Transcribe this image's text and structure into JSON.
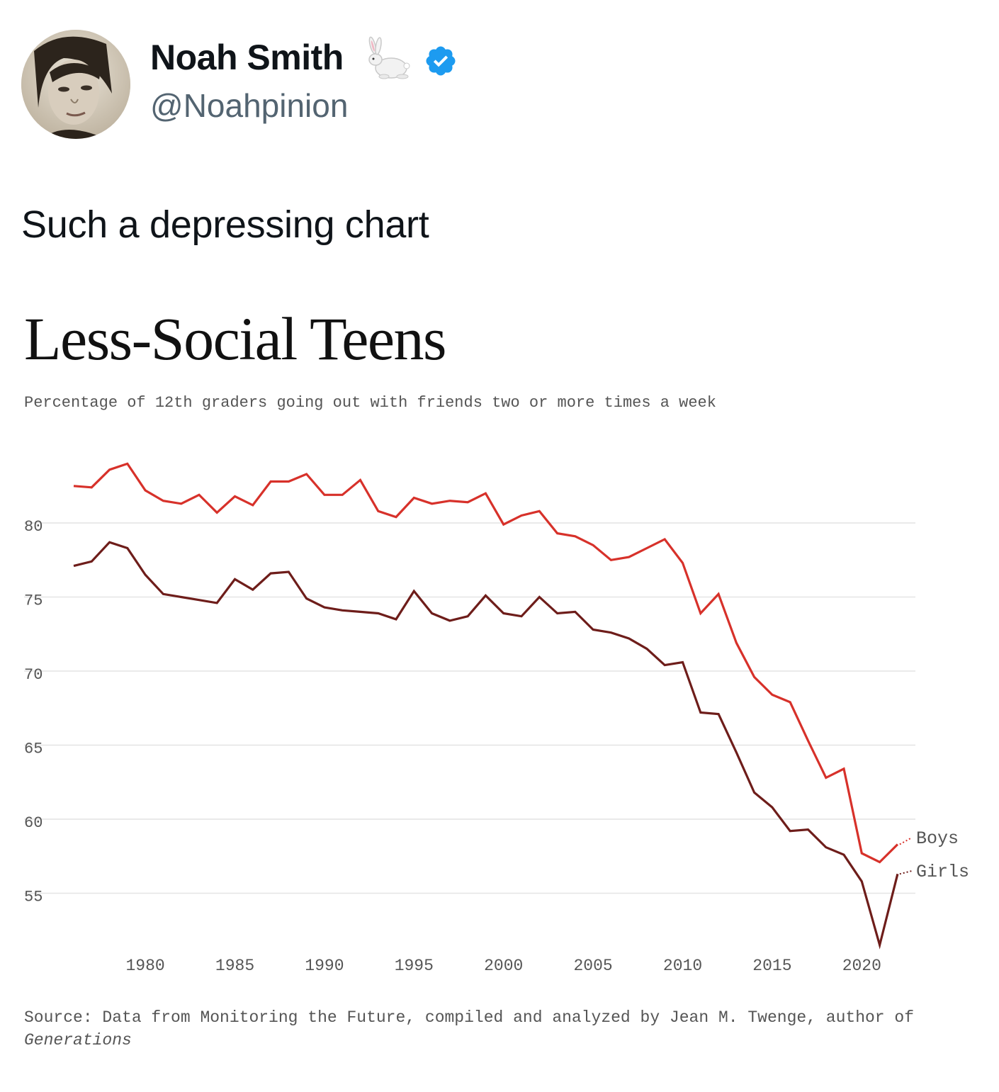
{
  "tweet": {
    "author_name": "Noah Smith",
    "name_emoji": "rabbit",
    "handle": "@Noahpinion",
    "verified_badge": "verified-badge",
    "text": "Such a depressing chart"
  },
  "colors": {
    "boys_line": "#d7312a",
    "girls_line": "#6e1d1a",
    "verified_blue": "#1d9bf0"
  },
  "chart_data": {
    "type": "line",
    "title": "Less-Social Teens",
    "subtitle": "Percentage of 12th graders going out with friends two or more times a week",
    "xlabel": "",
    "ylabel": "",
    "xlim": [
      1976,
      2022
    ],
    "ylim": [
      51,
      85
    ],
    "x_ticks": [
      1980,
      1985,
      1990,
      1995,
      2000,
      2005,
      2010,
      2015,
      2020
    ],
    "y_ticks": [
      80,
      75,
      70,
      65,
      60,
      55
    ],
    "grid": true,
    "x": [
      1976,
      1977,
      1978,
      1979,
      1980,
      1981,
      1982,
      1983,
      1984,
      1985,
      1986,
      1987,
      1988,
      1989,
      1990,
      1991,
      1992,
      1993,
      1994,
      1995,
      1996,
      1997,
      1998,
      1999,
      2000,
      2001,
      2002,
      2003,
      2004,
      2005,
      2006,
      2007,
      2008,
      2009,
      2010,
      2011,
      2012,
      2013,
      2014,
      2015,
      2016,
      2017,
      2018,
      2019,
      2020,
      2021,
      2022
    ],
    "series": [
      {
        "name": "Boys",
        "label": "Boys",
        "values": [
          82.5,
          82.4,
          83.6,
          84.0,
          82.2,
          81.5,
          81.3,
          81.9,
          80.7,
          81.8,
          81.2,
          82.8,
          82.8,
          83.3,
          81.9,
          81.9,
          82.9,
          80.8,
          80.4,
          81.7,
          81.3,
          81.5,
          81.4,
          82.0,
          79.9,
          80.5,
          80.8,
          79.3,
          79.1,
          78.5,
          77.5,
          77.7,
          78.3,
          78.9,
          77.3,
          73.9,
          75.2,
          71.9,
          69.6,
          68.4,
          67.9,
          65.3,
          62.8,
          63.4,
          57.7,
          57.1,
          58.3
        ]
      },
      {
        "name": "Girls",
        "label": "Girls",
        "values": [
          77.1,
          77.4,
          78.7,
          78.3,
          76.5,
          75.2,
          75.0,
          74.8,
          74.6,
          76.2,
          75.5,
          76.6,
          76.7,
          74.9,
          74.3,
          74.1,
          74.0,
          73.9,
          73.5,
          75.4,
          73.9,
          73.4,
          73.7,
          75.1,
          73.9,
          73.7,
          75.0,
          73.9,
          74.0,
          72.8,
          72.6,
          72.2,
          71.5,
          70.4,
          70.6,
          67.2,
          67.1,
          64.5,
          61.8,
          60.8,
          59.2,
          59.3,
          58.1,
          57.6,
          55.8,
          51.5,
          56.3
        ]
      }
    ],
    "source_prefix": "Source: Data from Monitoring the Future, compiled and analyzed by Jean M. Twenge, author of ",
    "source_book": "Generations"
  }
}
